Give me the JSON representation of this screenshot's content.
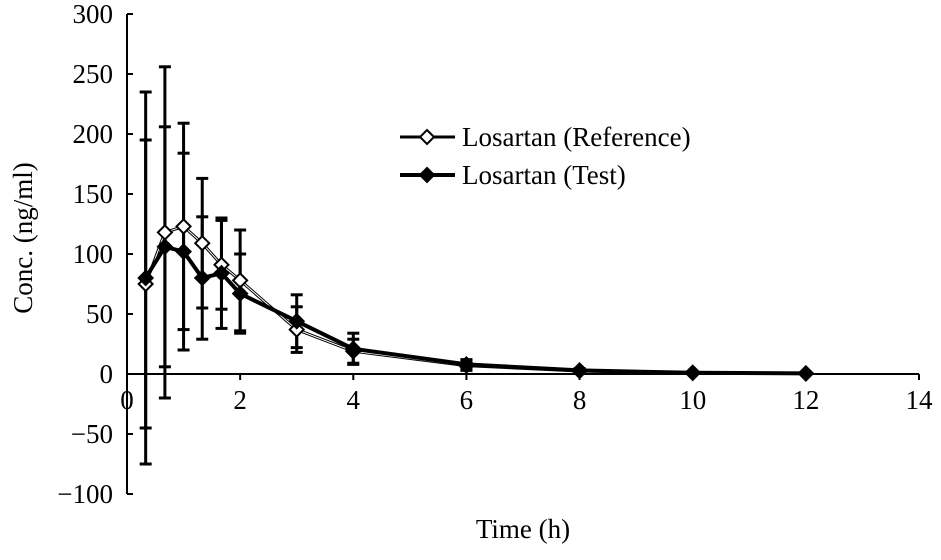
{
  "chart_data": {
    "type": "line",
    "title": "",
    "xlabel": "Time (h)",
    "ylabel": "Conc. (ng/ml)",
    "xlim": [
      0,
      14
    ],
    "ylim": [
      -100,
      300
    ],
    "xticks": [
      0,
      2,
      4,
      6,
      8,
      10,
      12,
      14
    ],
    "yticks": [
      -100,
      -50,
      0,
      50,
      100,
      150,
      200,
      250,
      300
    ],
    "grid": false,
    "legend_position": "top-right",
    "x": [
      0.33,
      0.67,
      1.0,
      1.33,
      1.67,
      2.0,
      3.0,
      4.0,
      6.0,
      8.0,
      10.0,
      12.0
    ],
    "series": [
      {
        "name": "Losartan (Reference)",
        "marker": "open-diamond",
        "color": "#000000",
        "values": [
          75,
          118,
          123,
          109,
          91,
          78,
          37,
          19,
          7,
          2.5,
          1,
          0.5
        ],
        "sd": [
          120,
          138,
          86,
          54,
          37,
          42,
          19,
          10,
          4,
          1.5,
          0.5,
          0.3
        ]
      },
      {
        "name": "Losartan (Test)",
        "marker": "filled-diamond",
        "color": "#000000",
        "values": [
          80,
          106,
          102,
          80,
          84,
          67,
          44,
          21,
          8,
          3,
          1,
          0.5
        ],
        "sd": [
          155,
          100,
          82,
          51,
          46,
          33,
          22,
          13,
          4,
          1.5,
          0.5,
          0.3
        ]
      }
    ]
  }
}
